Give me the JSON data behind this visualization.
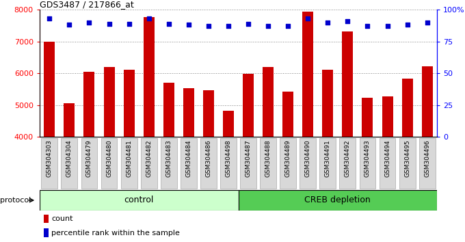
{
  "title": "GDS3487 / 217866_at",
  "samples": [
    "GSM304303",
    "GSM304304",
    "GSM304479",
    "GSM304480",
    "GSM304481",
    "GSM304482",
    "GSM304483",
    "GSM304484",
    "GSM304486",
    "GSM304498",
    "GSM304487",
    "GSM304488",
    "GSM304489",
    "GSM304490",
    "GSM304491",
    "GSM304492",
    "GSM304493",
    "GSM304494",
    "GSM304495",
    "GSM304496"
  ],
  "counts": [
    7000,
    5050,
    6050,
    6200,
    6100,
    7760,
    5700,
    5530,
    5470,
    4820,
    5990,
    6200,
    5420,
    7930,
    6100,
    7310,
    5230,
    5280,
    5820,
    6210
  ],
  "percentile_ranks": [
    93,
    88,
    90,
    89,
    89,
    93,
    89,
    88,
    87,
    87,
    89,
    87,
    87,
    93,
    90,
    91,
    87,
    87,
    88,
    90
  ],
  "control_count": 10,
  "ylim_left": [
    4000,
    8000
  ],
  "ylim_right": [
    0,
    100
  ],
  "yticks_left": [
    4000,
    5000,
    6000,
    7000,
    8000
  ],
  "yticks_right": [
    0,
    25,
    50,
    75,
    100
  ],
  "bar_color": "#cc0000",
  "dot_color": "#0000cc",
  "control_color": "#ccffcc",
  "creb_color": "#55cc55",
  "label_bg_color": "#dddddd",
  "protocol_label": "protocol",
  "control_label": "control",
  "creb_label": "CREB depletion",
  "legend_count": "count",
  "legend_pct": "percentile rank within the sample",
  "bar_width": 0.55
}
